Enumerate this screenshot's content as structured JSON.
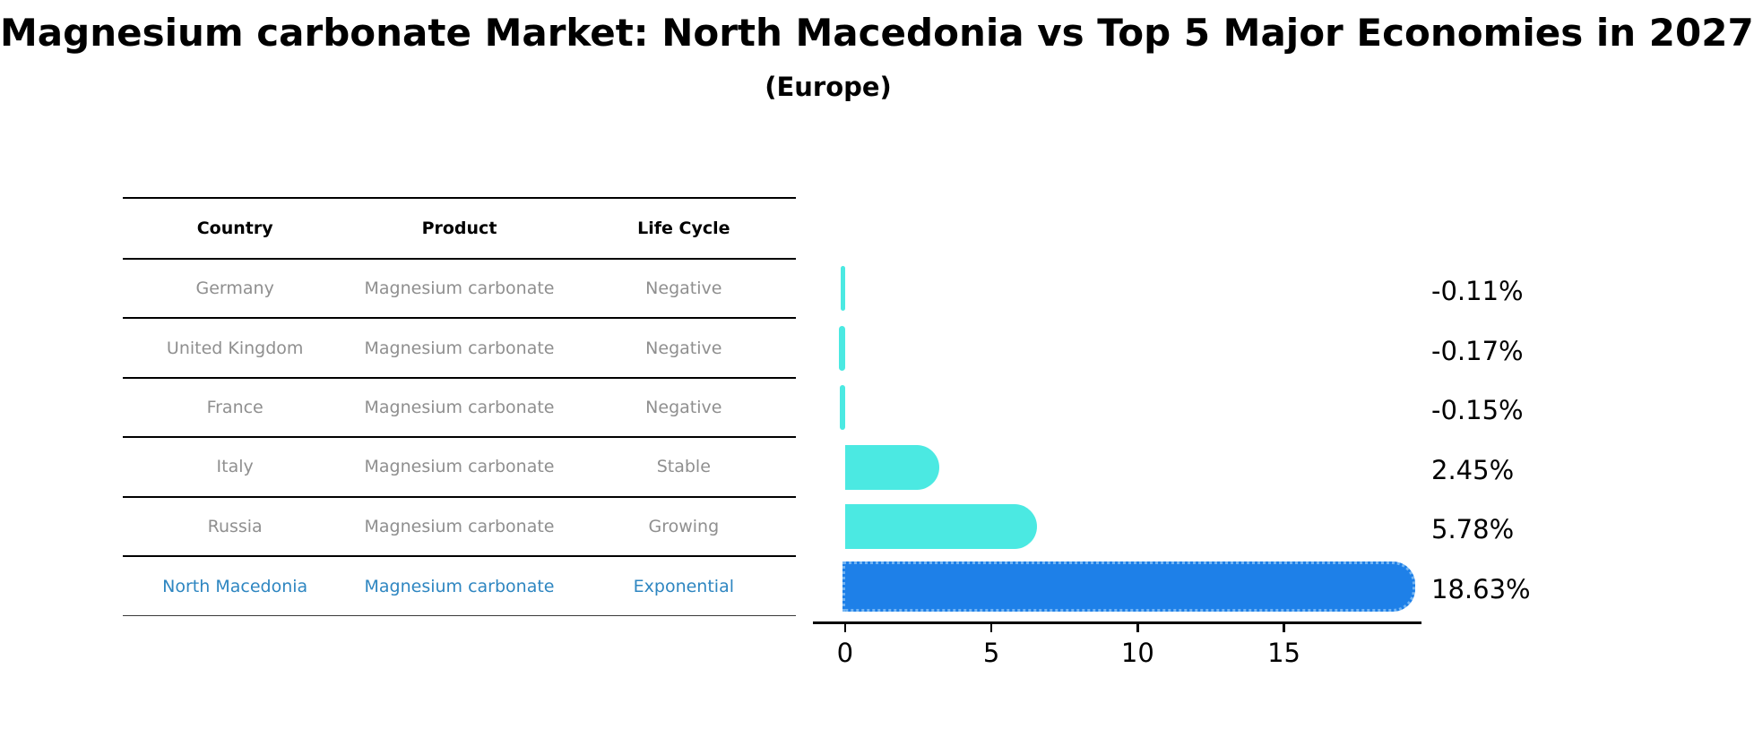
{
  "title": "Magnesium carbonate Market: North Macedonia vs Top 5 Major Economies in 2027",
  "subtitle": "(Europe)",
  "table": {
    "headers": [
      "Country",
      "Product",
      "Life Cycle"
    ],
    "rows": [
      {
        "country": "Germany",
        "product": "Magnesium carbonate",
        "life_cycle": "Negative",
        "highlight": false
      },
      {
        "country": "United Kingdom",
        "product": "Magnesium carbonate",
        "life_cycle": "Negative",
        "highlight": false
      },
      {
        "country": "France",
        "product": "Magnesium carbonate",
        "life_cycle": "Negative",
        "highlight": false
      },
      {
        "country": "Italy",
        "product": "Magnesium carbonate",
        "life_cycle": "Stable",
        "highlight": false
      },
      {
        "country": "Russia",
        "product": "Magnesium carbonate",
        "life_cycle": "Growing",
        "highlight": false
      },
      {
        "country": "North Macedonia",
        "product": "Magnesium carbonate",
        "life_cycle": "Exponential",
        "highlight": true
      }
    ]
  },
  "chart_data": {
    "type": "bar",
    "orientation": "horizontal",
    "title": "Magnesium carbonate Market: North Macedonia vs Top 5 Major Economies in 2027 (Europe)",
    "categories": [
      "Germany",
      "United Kingdom",
      "France",
      "Italy",
      "Russia",
      "North Macedonia"
    ],
    "values": [
      -0.11,
      -0.17,
      -0.15,
      2.45,
      5.78,
      18.63
    ],
    "value_labels": [
      "-0.11%",
      "-0.17%",
      "-0.15%",
      "2.45%",
      "5.78%",
      "18.63%"
    ],
    "xticks": [
      0,
      5,
      10,
      15
    ],
    "xlim": [
      -1.1,
      19.7
    ],
    "highlight_index": 5,
    "grid": false,
    "legend": false,
    "xlabel": "",
    "ylabel": ""
  },
  "colors": {
    "bar": "#4be9e2",
    "highlight_bar": "#1e80e8",
    "highlight_text": "#2e86c1",
    "row_text": "#8f8f8f",
    "axis": "#000000"
  }
}
